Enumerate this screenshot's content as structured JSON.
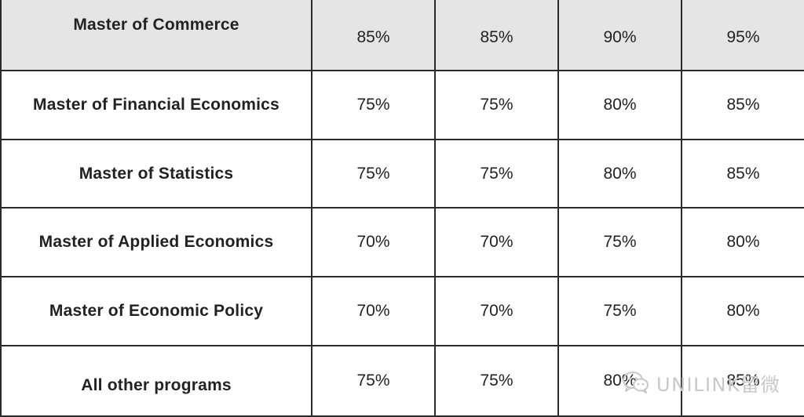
{
  "table": {
    "rows": [
      {
        "program": "Master of Commerce",
        "values": [
          "85%",
          "85%",
          "90%",
          "95%"
        ]
      },
      {
        "program": "Master of Financial Economics",
        "values": [
          "75%",
          "75%",
          "80%",
          "85%"
        ]
      },
      {
        "program": "Master of Statistics",
        "values": [
          "75%",
          "75%",
          "80%",
          "85%"
        ]
      },
      {
        "program": "Master of Applied Economics",
        "values": [
          "70%",
          "70%",
          "75%",
          "80%"
        ]
      },
      {
        "program": "Master of Economic Policy",
        "values": [
          "70%",
          "70%",
          "75%",
          "80%"
        ]
      },
      {
        "program": "All other programs",
        "values": [
          "75%",
          "75%",
          "80%",
          "85%"
        ]
      }
    ]
  },
  "watermark": {
    "text": "UNILINK留微",
    "icon": "wechat-icon",
    "color": "#c8c8c8"
  },
  "colors": {
    "header_row_bg": "#e6e5e5",
    "border": "#2a2a2a"
  }
}
